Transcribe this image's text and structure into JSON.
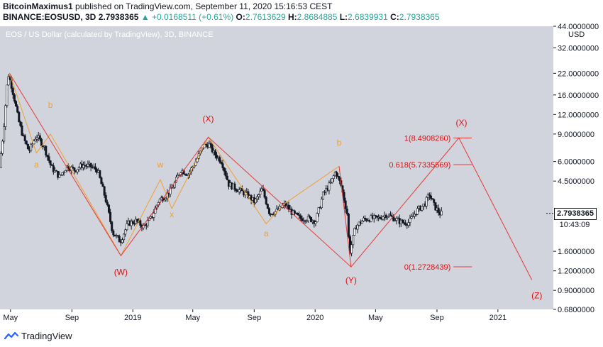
{
  "header": {
    "author": "BitcoinMaximus1",
    "published": "published on TradingView.com, September 11, 2020 15:16:53 CEST",
    "symbol": "BINANCE:EOSUSD, 3D",
    "last": "2.7938365",
    "change": "▲ +0.0168511 (+0.61%)",
    "o_label": "O:",
    "o_value": "2.7613629",
    "h_label": "H:",
    "h_value": "2.8684885",
    "l_label": "L:",
    "l_value": "2.6839931",
    "c_label": "C:",
    "c_value": "2.7938365"
  },
  "footer": {
    "brand": "TradingView"
  },
  "colors": {
    "plot_bg": "#d1d4dc",
    "candle": "#131722",
    "red_wave": "#e53935",
    "orange_wave": "#f0a030",
    "red_text": "#e01010",
    "orange_text": "#f0a030"
  },
  "chart_data": {
    "type": "candlestick",
    "title": "EOS / US Dollar (calculated by TradingView), 3D, BINANCE",
    "y_scale": "log",
    "y_unit": "USD",
    "ylim": [
      0.68,
      44
    ],
    "y_ticks": [
      {
        "value": 44,
        "label": "44.0000000"
      },
      {
        "value": 32,
        "label": "32.0000000"
      },
      {
        "value": 22,
        "label": "22.0000000"
      },
      {
        "value": 16,
        "label": "16.0000000"
      },
      {
        "value": 12,
        "label": "12.0000000"
      },
      {
        "value": 9,
        "label": "9.0000000"
      },
      {
        "value": 6,
        "label": "6.0000000"
      },
      {
        "value": 4.5,
        "label": "4.5000000"
      },
      {
        "value": 1.6,
        "label": "1.6000000"
      },
      {
        "value": 1.2,
        "label": "1.2000000"
      },
      {
        "value": 0.9,
        "label": "0.9000000"
      },
      {
        "value": 0.68,
        "label": "0.6800000"
      }
    ],
    "x_ticks": [
      {
        "date": "2018-05-01",
        "label": "May"
      },
      {
        "date": "2018-09-01",
        "label": "Sep"
      },
      {
        "date": "2019-01-01",
        "label": "2019"
      },
      {
        "date": "2019-05-01",
        "label": "May"
      },
      {
        "date": "2019-09-01",
        "label": "Sep"
      },
      {
        "date": "2020-01-01",
        "label": "2020"
      },
      {
        "date": "2020-05-01",
        "label": "May"
      },
      {
        "date": "2020-09-01",
        "label": "Sep"
      },
      {
        "date": "2021-01-01",
        "label": "2021"
      }
    ],
    "xlim": [
      "2018-04-10",
      "2021-04-22"
    ],
    "current_price": {
      "value": 2.7938365,
      "label": "2.7938365"
    },
    "countdown": "10:43:09",
    "price_path": [
      [
        "2018-04-12",
        5.5
      ],
      [
        "2018-04-20",
        9.5
      ],
      [
        "2018-04-29",
        22
      ],
      [
        "2018-05-05",
        19
      ],
      [
        "2018-05-12",
        15
      ],
      [
        "2018-05-20",
        11
      ],
      [
        "2018-05-30",
        8.5
      ],
      [
        "2018-06-10",
        7
      ],
      [
        "2018-06-25",
        8.8
      ],
      [
        "2018-07-10",
        7.5
      ],
      [
        "2018-07-25",
        5.5
      ],
      [
        "2018-08-10",
        4.8
      ],
      [
        "2018-08-25",
        5.6
      ],
      [
        "2018-09-10",
        5.3
      ],
      [
        "2018-09-25",
        5.7
      ],
      [
        "2018-10-10",
        5.6
      ],
      [
        "2018-10-25",
        5.3
      ],
      [
        "2018-11-10",
        3.5
      ],
      [
        "2018-11-25",
        2.1
      ],
      [
        "2018-12-10",
        1.85
      ],
      [
        "2018-12-25",
        2.4
      ],
      [
        "2019-01-10",
        2.5
      ],
      [
        "2019-01-25",
        2.3
      ],
      [
        "2019-02-10",
        2.6
      ],
      [
        "2019-02-25",
        3.4
      ],
      [
        "2019-03-10",
        3.6
      ],
      [
        "2019-03-25",
        4.1
      ],
      [
        "2019-04-10",
        5.3
      ],
      [
        "2019-04-25",
        5.0
      ],
      [
        "2019-05-10",
        6.0
      ],
      [
        "2019-05-25",
        7.5
      ],
      [
        "2019-06-05",
        7.8
      ],
      [
        "2019-06-15",
        6.8
      ],
      [
        "2019-07-01",
        6.0
      ],
      [
        "2019-07-15",
        4.3
      ],
      [
        "2019-08-01",
        4.0
      ],
      [
        "2019-08-20",
        3.7
      ],
      [
        "2019-09-05",
        3.3
      ],
      [
        "2019-09-20",
        4.0
      ],
      [
        "2019-10-05",
        2.8
      ],
      [
        "2019-10-20",
        2.9
      ],
      [
        "2019-11-05",
        3.2
      ],
      [
        "2019-11-20",
        2.8
      ],
      [
        "2019-12-05",
        2.6
      ],
      [
        "2019-12-20",
        2.6
      ],
      [
        "2020-01-05",
        2.5
      ],
      [
        "2020-01-20",
        3.7
      ],
      [
        "2020-02-05",
        4.4
      ],
      [
        "2020-02-14",
        5.2
      ],
      [
        "2020-02-25",
        4.2
      ],
      [
        "2020-03-08",
        2.8
      ],
      [
        "2020-03-13",
        1.55
      ],
      [
        "2020-03-25",
        2.3
      ],
      [
        "2020-04-10",
        2.55
      ],
      [
        "2020-04-25",
        2.6
      ],
      [
        "2020-05-10",
        2.6
      ],
      [
        "2020-05-25",
        2.75
      ],
      [
        "2020-06-10",
        2.6
      ],
      [
        "2020-06-25",
        2.45
      ],
      [
        "2020-07-10",
        2.45
      ],
      [
        "2020-07-25",
        2.9
      ],
      [
        "2020-08-10",
        3.2
      ],
      [
        "2020-08-20",
        3.7
      ],
      [
        "2020-08-30",
        3.1
      ],
      [
        "2020-09-10",
        2.79
      ]
    ],
    "waves": {
      "red": [
        {
          "points": [
            [
              "2018-04-29",
              22
            ],
            [
              "2018-12-08",
              1.5
            ],
            [
              "2019-06-01",
              8.6
            ],
            [
              "2020-03-13",
              1.27
            ],
            [
              "2020-10-15",
              8.49
            ],
            [
              "2021-03-10",
              1.05
            ]
          ]
        },
        {
          "points": [
            [
              "2020-02-18",
              5.6
            ],
            [
              "2020-03-13",
              1.27
            ]
          ]
        }
      ],
      "orange": [
        {
          "points": [
            [
              "2018-04-29",
              22
            ],
            [
              "2018-06-22",
              6.8
            ],
            [
              "2018-07-20",
              9.0
            ],
            [
              "2018-12-08",
              1.5
            ]
          ]
        },
        {
          "points": [
            [
              "2018-12-08",
              1.5
            ],
            [
              "2019-02-25",
              4.6
            ],
            [
              "2019-03-20",
              3.0
            ],
            [
              "2019-06-01",
              8.6
            ]
          ]
        },
        {
          "points": [
            [
              "2019-06-01",
              8.6
            ],
            [
              "2019-09-25",
              2.4
            ],
            [
              "2019-10-30",
              3.2
            ],
            [
              "2020-02-18",
              5.6
            ]
          ]
        }
      ]
    },
    "wave_labels": [
      {
        "text": "a",
        "date": "2018-06-22",
        "price": 5.5,
        "color": "orange"
      },
      {
        "text": "b",
        "date": "2018-07-20",
        "price": 13.2,
        "color": "orange"
      },
      {
        "text": "(W)",
        "date": "2018-12-08",
        "price": 1.13,
        "color": "red"
      },
      {
        "text": "w",
        "date": "2019-02-25",
        "price": 5.5,
        "color": "orange"
      },
      {
        "text": "x",
        "date": "2019-03-20",
        "price": 2.65,
        "color": "orange"
      },
      {
        "text": "(X)",
        "date": "2019-06-01",
        "price": 10.8,
        "color": "red"
      },
      {
        "text": "a",
        "date": "2019-09-25",
        "price": 2.0,
        "color": "orange"
      },
      {
        "text": "b",
        "date": "2020-02-18",
        "price": 7.6,
        "color": "orange"
      },
      {
        "text": "(Y)",
        "date": "2020-03-13",
        "price": 1.0,
        "color": "red"
      },
      {
        "text": "(X)",
        "date": "2020-10-20",
        "price": 10.2,
        "color": "red"
      },
      {
        "text": "(Z)",
        "date": "2021-03-20",
        "price": 0.8,
        "color": "red"
      }
    ],
    "fib_levels": [
      {
        "text": "1(8.4908260)",
        "price": 8.490826,
        "end_date": "2020-11-10"
      },
      {
        "text": "0.618(5.7335569)",
        "price": 5.7335569,
        "end_date": "2020-11-10"
      },
      {
        "text": "0(1.2728439)",
        "price": 1.2728439,
        "end_date": "2020-11-10"
      }
    ]
  }
}
